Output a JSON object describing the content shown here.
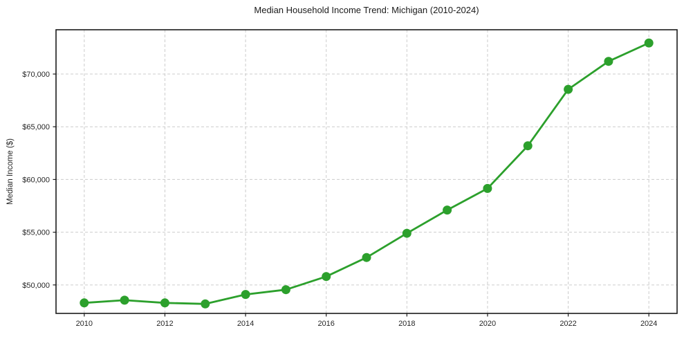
{
  "header": {
    "title": "Median Household Income Trend: Michigan (2010-2024)"
  },
  "chart_data": {
    "type": "line",
    "title": "Median Household Income Trend: Michigan (2010-2024)",
    "xlabel": "",
    "ylabel": "Median Income ($)",
    "x": [
      2010,
      2011,
      2012,
      2013,
      2014,
      2015,
      2016,
      2017,
      2018,
      2019,
      2020,
      2021,
      2022,
      2023,
      2024
    ],
    "values": [
      48300,
      48550,
      48300,
      48200,
      49100,
      49550,
      50800,
      52600,
      54900,
      57100,
      59150,
      63200,
      68550,
      71200,
      72950
    ],
    "x_ticks": [
      2010,
      2012,
      2014,
      2016,
      2018,
      2020,
      2022,
      2024
    ],
    "x_tick_labels": [
      "2010",
      "2012",
      "2014",
      "2016",
      "2018",
      "2020",
      "2022",
      "2024"
    ],
    "y_ticks": [
      50000,
      55000,
      60000,
      65000,
      70000
    ],
    "y_tick_labels": [
      "$50,000",
      "$55,000",
      "$60,000",
      "$65,000",
      "$70,000"
    ],
    "xlim": [
      2009.3,
      2024.7
    ],
    "ylim": [
      47300,
      74200
    ],
    "grid": true,
    "grid_style": "dashed",
    "legend": "none",
    "line_color": "#2ca02c",
    "marker": "circle",
    "marker_color": "#2ca02c",
    "grid_color": "#cccccc",
    "axis_color": "#1a1a1a",
    "text_color": "#262626"
  }
}
